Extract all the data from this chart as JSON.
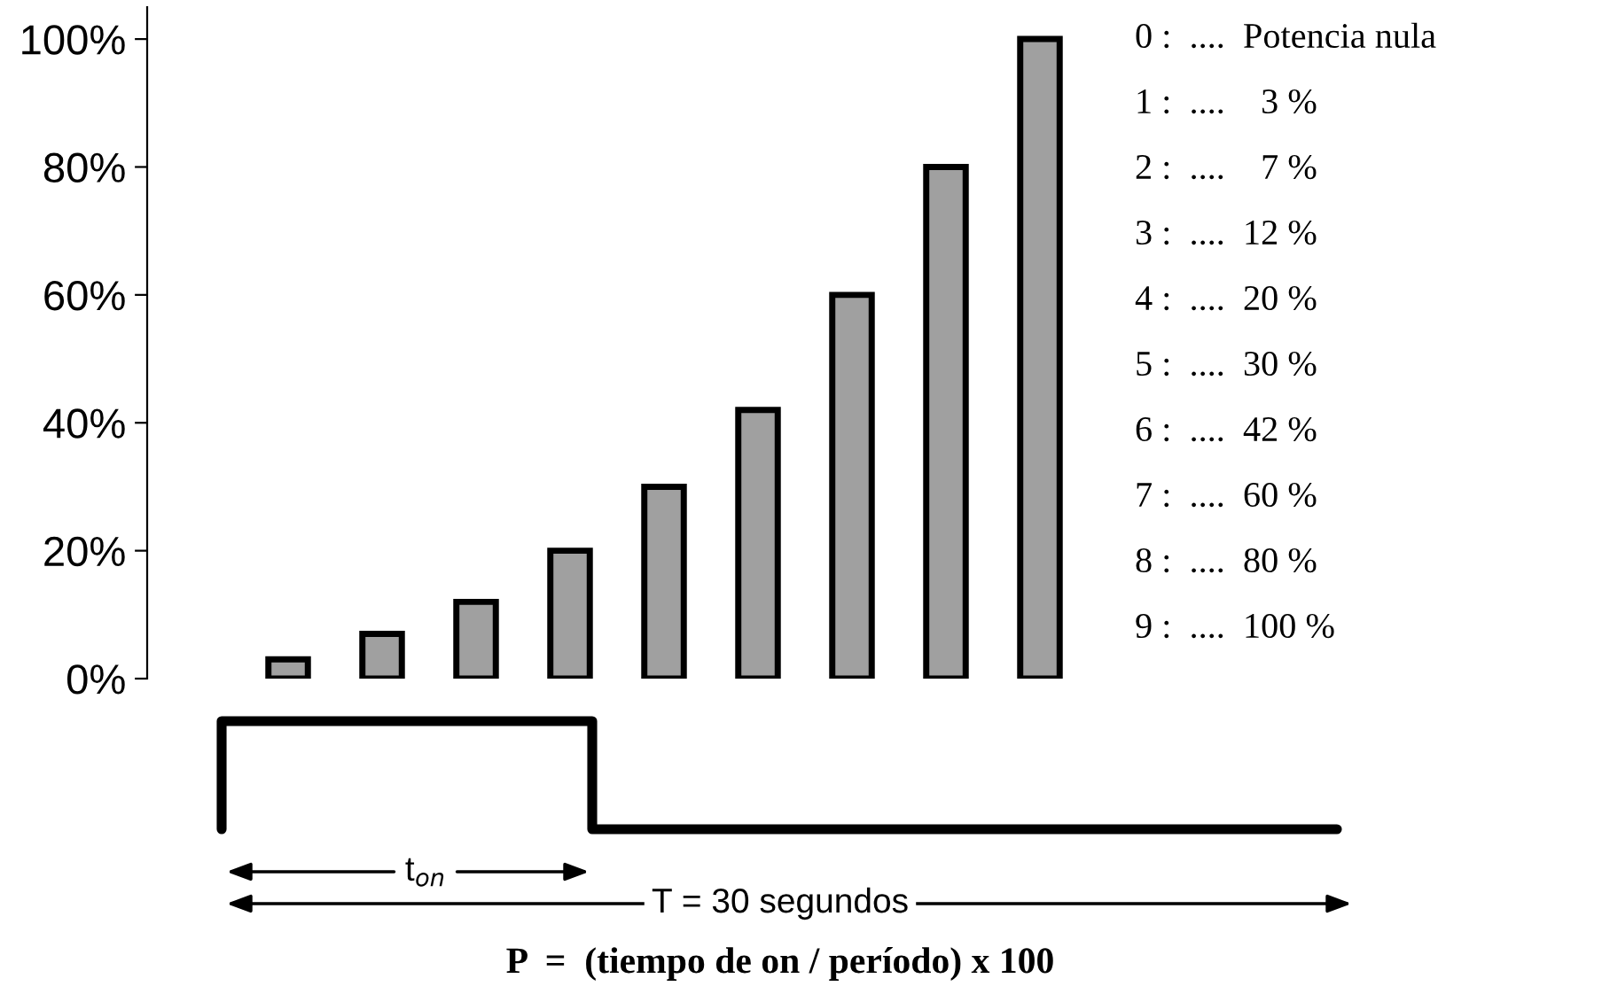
{
  "chart_data": {
    "type": "bar",
    "categories": [
      null,
      null,
      null,
      null,
      null,
      null,
      null,
      null,
      null
    ],
    "values": [
      3,
      7,
      12,
      20,
      30,
      42,
      60,
      80,
      100
    ],
    "color": "#a0a0a0",
    "ylim": [
      0,
      105
    ],
    "yticks": [
      {
        "value": 0,
        "label": "0%"
      },
      {
        "value": 20,
        "label": "20%"
      },
      {
        "value": 40,
        "label": "40%"
      },
      {
        "value": 60,
        "label": "60%"
      },
      {
        "value": 80,
        "label": "80%"
      },
      {
        "value": 100,
        "label": "100%"
      }
    ],
    "grid": false,
    "legend": false,
    "annotations": [
      "0 :  ....  Potencia nula",
      "1 :  ....    3 %",
      "2 :  ....    7 %",
      "3 :  ....  12 %",
      "4 :  ....  20 %",
      "5 :  ....  30 %",
      "6 :  ....  42 %",
      "7 :  ....  60 %",
      "8 :  ....  80 %",
      "9 :  ....  100 %",
      "t$_{on}$",
      "T = 30 segundos",
      "P  =  (tiempo de on / período) x 100"
    ]
  }
}
